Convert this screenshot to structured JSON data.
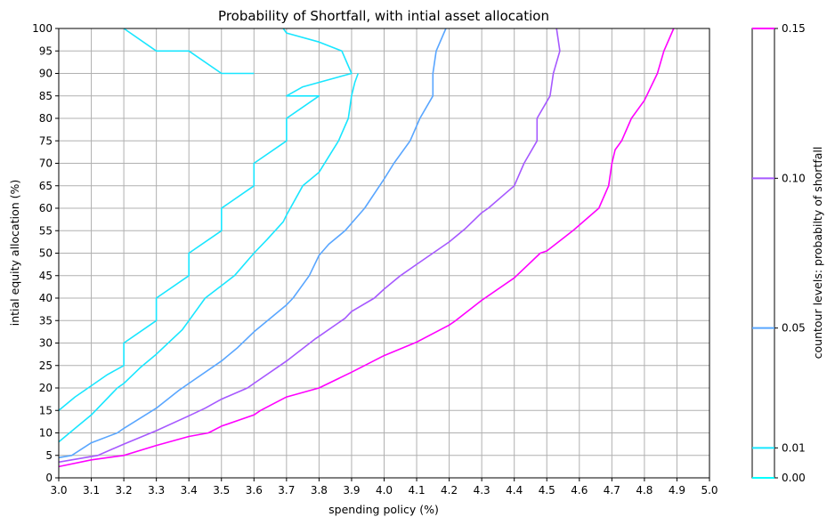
{
  "chart_data": {
    "type": "line",
    "title": "Probability of Shortfall, with intial asset allocation",
    "xlabel": "spending policy (%)",
    "ylabel": "intial equity allocation (%)",
    "xlim": [
      3.0,
      5.0
    ],
    "ylim": [
      0,
      100
    ],
    "x_ticks": [
      "3.0",
      "3.1",
      "3.2",
      "3.3",
      "3.4",
      "3.5",
      "3.6",
      "3.7",
      "3.8",
      "3.9",
      "4.0",
      "4.1",
      "4.2",
      "4.3",
      "4.4",
      "4.5",
      "4.6",
      "4.7",
      "4.8",
      "4.9",
      "5.0"
    ],
    "y_ticks": [
      "0",
      "5",
      "10",
      "15",
      "20",
      "25",
      "30",
      "35",
      "40",
      "45",
      "50",
      "55",
      "60",
      "65",
      "70",
      "75",
      "80",
      "85",
      "90",
      "95",
      "100"
    ],
    "grid": true,
    "colorbar": {
      "label": "countour levels: probabilty of shortfall",
      "range": [
        0,
        0.15
      ],
      "ticks": [
        "0.00",
        "0.01",
        "0.05",
        "0.10",
        "0.15"
      ],
      "levels": [
        0.0,
        0.01,
        0.05,
        0.1,
        0.15
      ],
      "colors": [
        "#00ffff",
        "#19e6ff",
        "#59a6ff",
        "#a659ff",
        "#ff00ff"
      ]
    },
    "series": [
      {
        "level": 0.01,
        "color": "#19e6ff",
        "points": [
          [
            3.0,
            15
          ],
          [
            3.05,
            18
          ],
          [
            3.1,
            20.5
          ],
          [
            3.15,
            23
          ],
          [
            3.2,
            25
          ],
          [
            3.2,
            30
          ],
          [
            3.3,
            35
          ],
          [
            3.3,
            40
          ],
          [
            3.4,
            45
          ],
          [
            3.4,
            50
          ],
          [
            3.5,
            55
          ],
          [
            3.5,
            60
          ],
          [
            3.6,
            65
          ],
          [
            3.6,
            70
          ],
          [
            3.7,
            75
          ],
          [
            3.7,
            80
          ],
          [
            3.8,
            85
          ],
          [
            3.7,
            85
          ],
          [
            3.75,
            87
          ],
          [
            3.9,
            90
          ],
          [
            3.87,
            95
          ],
          [
            3.8,
            97
          ],
          [
            3.7,
            99
          ],
          [
            3.69,
            100
          ]
        ]
      },
      {
        "level": 0.01,
        "color": "#19e6ff",
        "points": [
          [
            3.2,
            100
          ],
          [
            3.3,
            95
          ],
          [
            3.4,
            95
          ],
          [
            3.5,
            90
          ],
          [
            3.6,
            90
          ]
        ]
      },
      {
        "level": 0.01,
        "color": "#19e6ff",
        "points": [
          [
            3.0,
            8
          ],
          [
            3.05,
            11
          ],
          [
            3.1,
            14
          ],
          [
            3.18,
            20
          ],
          [
            3.2,
            21
          ],
          [
            3.25,
            24.5
          ],
          [
            3.3,
            27.5
          ],
          [
            3.38,
            33
          ],
          [
            3.4,
            35
          ],
          [
            3.45,
            40
          ],
          [
            3.54,
            45
          ],
          [
            3.6,
            50
          ],
          [
            3.64,
            53
          ],
          [
            3.69,
            57
          ],
          [
            3.7,
            58.5
          ],
          [
            3.75,
            65
          ],
          [
            3.8,
            68
          ],
          [
            3.86,
            75
          ],
          [
            3.89,
            80
          ],
          [
            3.9,
            85
          ],
          [
            3.91,
            88
          ],
          [
            3.92,
            90
          ]
        ]
      },
      {
        "level": 0.05,
        "color": "#59a6ff",
        "points": [
          [
            3.0,
            4.5
          ],
          [
            3.04,
            5
          ],
          [
            3.1,
            7.8
          ],
          [
            3.18,
            10
          ],
          [
            3.2,
            11
          ],
          [
            3.3,
            15.5
          ],
          [
            3.37,
            19.5
          ],
          [
            3.4,
            21
          ],
          [
            3.5,
            26
          ],
          [
            3.55,
            29
          ],
          [
            3.6,
            32.5
          ],
          [
            3.65,
            35.5
          ],
          [
            3.7,
            38.5
          ],
          [
            3.72,
            40
          ],
          [
            3.77,
            45
          ],
          [
            3.8,
            49.5
          ],
          [
            3.83,
            52
          ],
          [
            3.88,
            55
          ],
          [
            3.94,
            60
          ],
          [
            4.0,
            66.5
          ],
          [
            4.03,
            70
          ],
          [
            4.08,
            75
          ],
          [
            4.11,
            80
          ],
          [
            4.15,
            85
          ],
          [
            4.15,
            90
          ],
          [
            4.16,
            95
          ],
          [
            4.19,
            100
          ]
        ]
      },
      {
        "level": 0.1,
        "color": "#a659ff",
        "points": [
          [
            3.0,
            3.5
          ],
          [
            3.12,
            5
          ],
          [
            3.2,
            7.5
          ],
          [
            3.3,
            10.5
          ],
          [
            3.4,
            13.8
          ],
          [
            3.45,
            15.5
          ],
          [
            3.5,
            17.5
          ],
          [
            3.58,
            20
          ],
          [
            3.6,
            21
          ],
          [
            3.68,
            25
          ],
          [
            3.7,
            26
          ],
          [
            3.79,
            31
          ],
          [
            3.8,
            31.5
          ],
          [
            3.88,
            35.5
          ],
          [
            3.9,
            37
          ],
          [
            3.97,
            40
          ],
          [
            4.0,
            42
          ],
          [
            4.05,
            45
          ],
          [
            4.1,
            47.5
          ],
          [
            4.15,
            50
          ],
          [
            4.2,
            52.5
          ],
          [
            4.25,
            55.5
          ],
          [
            4.3,
            59
          ],
          [
            4.32,
            60
          ],
          [
            4.4,
            65
          ],
          [
            4.43,
            70
          ],
          [
            4.47,
            75
          ],
          [
            4.47,
            80
          ],
          [
            4.51,
            85
          ],
          [
            4.52,
            90
          ],
          [
            4.54,
            95
          ],
          [
            4.53,
            100
          ]
        ]
      },
      {
        "level": 0.15,
        "color": "#ff00ff",
        "points": [
          [
            3.0,
            2.5
          ],
          [
            3.1,
            4
          ],
          [
            3.2,
            5
          ],
          [
            3.3,
            7.2
          ],
          [
            3.4,
            9.2
          ],
          [
            3.46,
            10
          ],
          [
            3.5,
            11.5
          ],
          [
            3.6,
            14
          ],
          [
            3.62,
            15
          ],
          [
            3.7,
            18
          ],
          [
            3.8,
            20
          ],
          [
            3.9,
            23.5
          ],
          [
            4.0,
            27.2
          ],
          [
            4.1,
            30.2
          ],
          [
            4.2,
            34
          ],
          [
            4.22,
            35
          ],
          [
            4.3,
            39.5
          ],
          [
            4.4,
            44.5
          ],
          [
            4.48,
            50
          ],
          [
            4.5,
            50.5
          ],
          [
            4.58,
            55
          ],
          [
            4.66,
            60
          ],
          [
            4.69,
            65
          ],
          [
            4.7,
            70
          ],
          [
            4.71,
            73
          ],
          [
            4.73,
            75
          ],
          [
            4.76,
            80
          ],
          [
            4.8,
            84
          ],
          [
            4.84,
            90
          ],
          [
            4.86,
            95
          ],
          [
            4.89,
            100
          ]
        ]
      }
    ]
  }
}
